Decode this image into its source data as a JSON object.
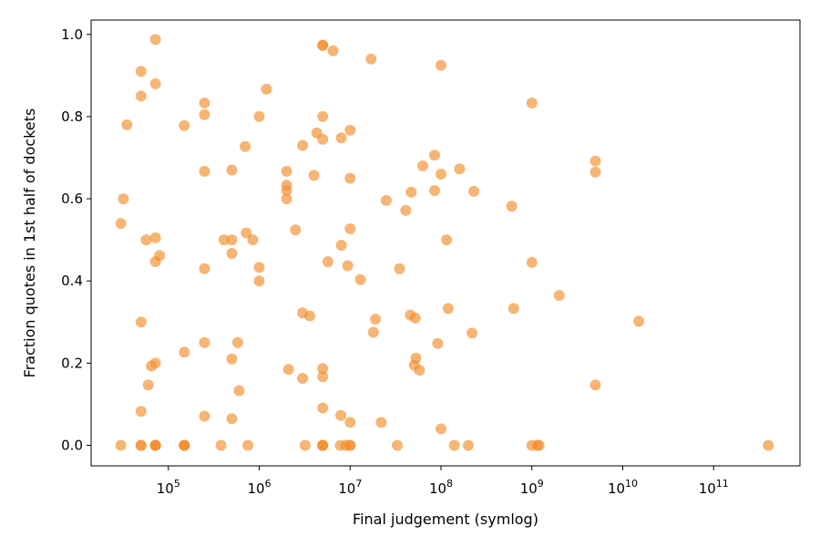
{
  "chart_data": {
    "type": "scatter",
    "title": "",
    "xlabel": "Final judgement (symlog)",
    "ylabel": "Fraction quotes in 1st half of dockets",
    "xscale": "symlog",
    "xlim_log10": [
      4.15,
      11.95
    ],
    "ylim": [
      -0.05,
      1.035
    ],
    "x_ticks": [
      {
        "value": 100000,
        "base": "10",
        "exp": "5"
      },
      {
        "value": 1000000,
        "base": "10",
        "exp": "6"
      },
      {
        "value": 10000000,
        "base": "10",
        "exp": "7"
      },
      {
        "value": 100000000,
        "base": "10",
        "exp": "8"
      },
      {
        "value": 1000000000,
        "base": "10",
        "exp": "9"
      },
      {
        "value": 10000000000,
        "base": "10",
        "exp": "10"
      },
      {
        "value": 100000000000,
        "base": "10",
        "exp": "11"
      }
    ],
    "y_ticks": [
      {
        "value": 0.0,
        "label": "0.0"
      },
      {
        "value": 0.2,
        "label": "0.2"
      },
      {
        "value": 0.4,
        "label": "0.4"
      },
      {
        "value": 0.6,
        "label": "0.6"
      },
      {
        "value": 0.8,
        "label": "0.8"
      },
      {
        "value": 1.0,
        "label": "1.0"
      }
    ],
    "grid": false,
    "series": [
      {
        "color": "#f28e2b",
        "alpha": 0.65,
        "points": [
          [
            30000,
            0.0
          ],
          [
            30000,
            0.54
          ],
          [
            32000,
            0.6
          ],
          [
            35000,
            0.78
          ],
          [
            50000,
            0.0
          ],
          [
            50000,
            0.0
          ],
          [
            50000,
            0.083
          ],
          [
            50000,
            0.3
          ],
          [
            50000,
            0.85
          ],
          [
            50000,
            0.91
          ],
          [
            57000,
            0.5
          ],
          [
            60000,
            0.147
          ],
          [
            65000,
            0.193
          ],
          [
            72000,
            0.0
          ],
          [
            72000,
            0.0
          ],
          [
            72000,
            0.0
          ],
          [
            72000,
            0.2
          ],
          [
            72000,
            0.447
          ],
          [
            72000,
            0.505
          ],
          [
            72000,
            0.88
          ],
          [
            72000,
            0.988
          ],
          [
            80000,
            0.462
          ],
          [
            150000,
            0.0
          ],
          [
            150000,
            0.0
          ],
          [
            150000,
            0.0
          ],
          [
            150000,
            0.227
          ],
          [
            150000,
            0.778
          ],
          [
            250000,
            0.071
          ],
          [
            250000,
            0.25
          ],
          [
            250000,
            0.43
          ],
          [
            250000,
            0.667
          ],
          [
            250000,
            0.805
          ],
          [
            250000,
            0.833
          ],
          [
            380000,
            0.0
          ],
          [
            410000,
            0.5
          ],
          [
            500000,
            0.065
          ],
          [
            500000,
            0.21
          ],
          [
            500000,
            0.467
          ],
          [
            500000,
            0.5
          ],
          [
            500000,
            0.67
          ],
          [
            580000,
            0.25
          ],
          [
            600000,
            0.133
          ],
          [
            700000,
            0.727
          ],
          [
            720000,
            0.517
          ],
          [
            750000,
            0.0
          ],
          [
            850000,
            0.5
          ],
          [
            1000000,
            0.4
          ],
          [
            1000000,
            0.433
          ],
          [
            1000000,
            0.8
          ],
          [
            1200000,
            0.867
          ],
          [
            2000000,
            0.6
          ],
          [
            2000000,
            0.62
          ],
          [
            2000000,
            0.633
          ],
          [
            2000000,
            0.667
          ],
          [
            2100000,
            0.185
          ],
          [
            2500000,
            0.524
          ],
          [
            3000000,
            0.163
          ],
          [
            3000000,
            0.322
          ],
          [
            3000000,
            0.73
          ],
          [
            3200000,
            0.0
          ],
          [
            3600000,
            0.315
          ],
          [
            4000000,
            0.657
          ],
          [
            4300000,
            0.76
          ],
          [
            5000000,
            0.0
          ],
          [
            5000000,
            0.0
          ],
          [
            5000000,
            0.0
          ],
          [
            5000000,
            0.091
          ],
          [
            5000000,
            0.167
          ],
          [
            5000000,
            0.187
          ],
          [
            5000000,
            0.745
          ],
          [
            5000000,
            0.8
          ],
          [
            5000000,
            0.973
          ],
          [
            5000000,
            0.974
          ],
          [
            5700000,
            0.447
          ],
          [
            6500000,
            0.96
          ],
          [
            7800000,
            0.0
          ],
          [
            7900000,
            0.073
          ],
          [
            8000000,
            0.487
          ],
          [
            8000000,
            0.748
          ],
          [
            9000000,
            0.0
          ],
          [
            9400000,
            0.437
          ],
          [
            10000000,
            0.0
          ],
          [
            10000000,
            0.0
          ],
          [
            10000000,
            0.056
          ],
          [
            10000000,
            0.527
          ],
          [
            10000000,
            0.65
          ],
          [
            10000000,
            0.767
          ],
          [
            13000000,
            0.403
          ],
          [
            17000000,
            0.94
          ],
          [
            18000000,
            0.275
          ],
          [
            19000000,
            0.307
          ],
          [
            22000000,
            0.056
          ],
          [
            25000000,
            0.596
          ],
          [
            33000000,
            0.0
          ],
          [
            35000000,
            0.43
          ],
          [
            41000000,
            0.572
          ],
          [
            46000000,
            0.317
          ],
          [
            47000000,
            0.616
          ],
          [
            51000000,
            0.195
          ],
          [
            52000000,
            0.31
          ],
          [
            53000000,
            0.212
          ],
          [
            58000000,
            0.183
          ],
          [
            63000000,
            0.68
          ],
          [
            85000000,
            0.706
          ],
          [
            85000000,
            0.62
          ],
          [
            92000000,
            0.248
          ],
          [
            100000000,
            0.04
          ],
          [
            100000000,
            0.66
          ],
          [
            100000000,
            0.925
          ],
          [
            115000000,
            0.5
          ],
          [
            120000000,
            0.333
          ],
          [
            140000000,
            0.0
          ],
          [
            160000000,
            0.673
          ],
          [
            200000000,
            0.0
          ],
          [
            220000000,
            0.273
          ],
          [
            230000000,
            0.618
          ],
          [
            600000000,
            0.582
          ],
          [
            630000000,
            0.333
          ],
          [
            1000000000,
            0.0
          ],
          [
            1000000000,
            0.445
          ],
          [
            1000000000,
            0.833
          ],
          [
            1150000000,
            0.0
          ],
          [
            1200000000,
            0.0
          ],
          [
            2000000000,
            0.365
          ],
          [
            5000000000,
            0.147
          ],
          [
            5000000000,
            0.665
          ],
          [
            5000000000,
            0.692
          ],
          [
            15000000000,
            0.302
          ],
          [
            400000000000,
            0.0
          ]
        ]
      }
    ]
  }
}
